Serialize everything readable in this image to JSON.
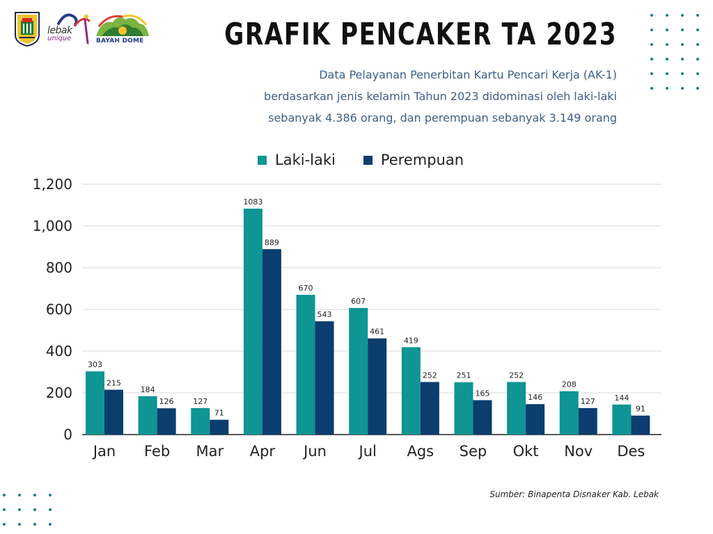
{
  "header": {
    "title": "GRAFIK PENCAKER TA 2023",
    "subtitle_lines": [
      "Data Pelayanan Penerbitan Kartu Pencari Kerja (AK-1)",
      "berdasarkan jenis kelamin Tahun 2023 didominasi oleh laki-laki",
      "sebanyak 4.386 orang, dan perempuan sebanyak 3.149 orang"
    ]
  },
  "logos": {
    "lebak_word": "lebak",
    "unique_word": "unique",
    "bayah_word": "BAYAH DOME"
  },
  "colors": {
    "laki": "#0e9594",
    "perempuan": "#0b3d6e",
    "subtitle": "#3d5f86",
    "dots": "#1a7e8a",
    "grid": "#d9d9d9"
  },
  "chart_data": {
    "type": "bar",
    "categories": [
      "Jan",
      "Feb",
      "Mar",
      "Apr",
      "Jun",
      "Jul",
      "Ags",
      "Sep",
      "Okt",
      "Nov",
      "Des"
    ],
    "series": [
      {
        "name": "Laki-laki",
        "values": [
          303,
          184,
          127,
          1083,
          670,
          607,
          419,
          251,
          252,
          208,
          144
        ]
      },
      {
        "name": "Perempuan",
        "values": [
          215,
          126,
          71,
          889,
          543,
          461,
          252,
          165,
          146,
          127,
          91
        ]
      }
    ],
    "yticks": [
      "0",
      "200",
      "400",
      "600",
      "800",
      "1,000",
      "1,200"
    ],
    "ylim": [
      0,
      1200
    ],
    "grid": true,
    "legend": "top-center"
  },
  "source": "Sumber: Binapenta Disnaker Kab. Lebak"
}
